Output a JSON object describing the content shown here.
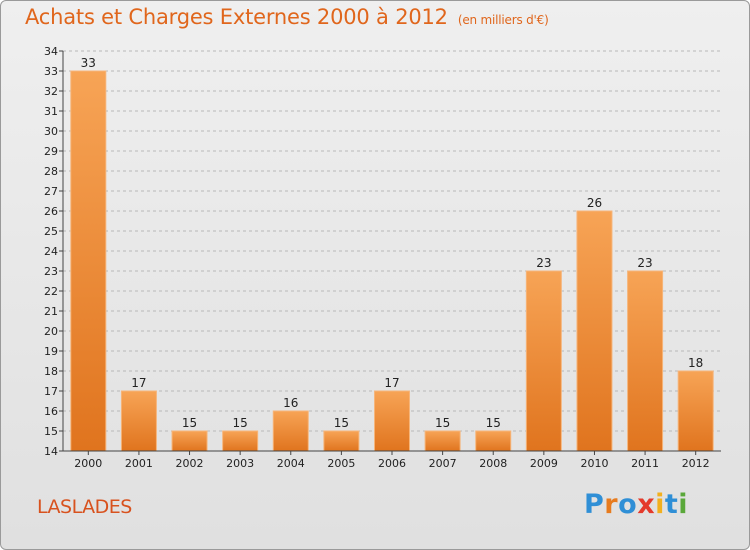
{
  "header": {
    "title": "Achats et Charges Externes 2000 à 2012",
    "unit": "(en milliers d'€)"
  },
  "footer": {
    "commune": "LASLADES",
    "logo_text": "Proxiti"
  },
  "colors": {
    "title": "#e0661c",
    "bar_top": "#f7a456",
    "bar_bottom": "#e0741e",
    "grid": "#b8b8b8",
    "logo": [
      "#2f8fd6",
      "#e77b1e",
      "#2f8fd6",
      "#e43a2b",
      "#f2b01e",
      "#2f8fd6",
      "#5aa83a"
    ]
  },
  "chart_data": {
    "type": "bar",
    "title": "Achats et Charges Externes 2000 à 2012",
    "subtitle": "(en milliers d'€)",
    "categories": [
      "2000",
      "2001",
      "2002",
      "2003",
      "2004",
      "2005",
      "2006",
      "2007",
      "2008",
      "2009",
      "2010",
      "2011",
      "2012"
    ],
    "values": [
      33,
      17,
      15,
      15,
      16,
      15,
      17,
      15,
      15,
      23,
      26,
      23,
      18
    ],
    "ylim": [
      14,
      34
    ],
    "yticks": [
      14,
      15,
      16,
      17,
      18,
      19,
      20,
      21,
      22,
      23,
      24,
      25,
      26,
      27,
      28,
      29,
      30,
      31,
      32,
      33,
      34
    ],
    "grid": "horizontal dashed",
    "legend": "none"
  }
}
